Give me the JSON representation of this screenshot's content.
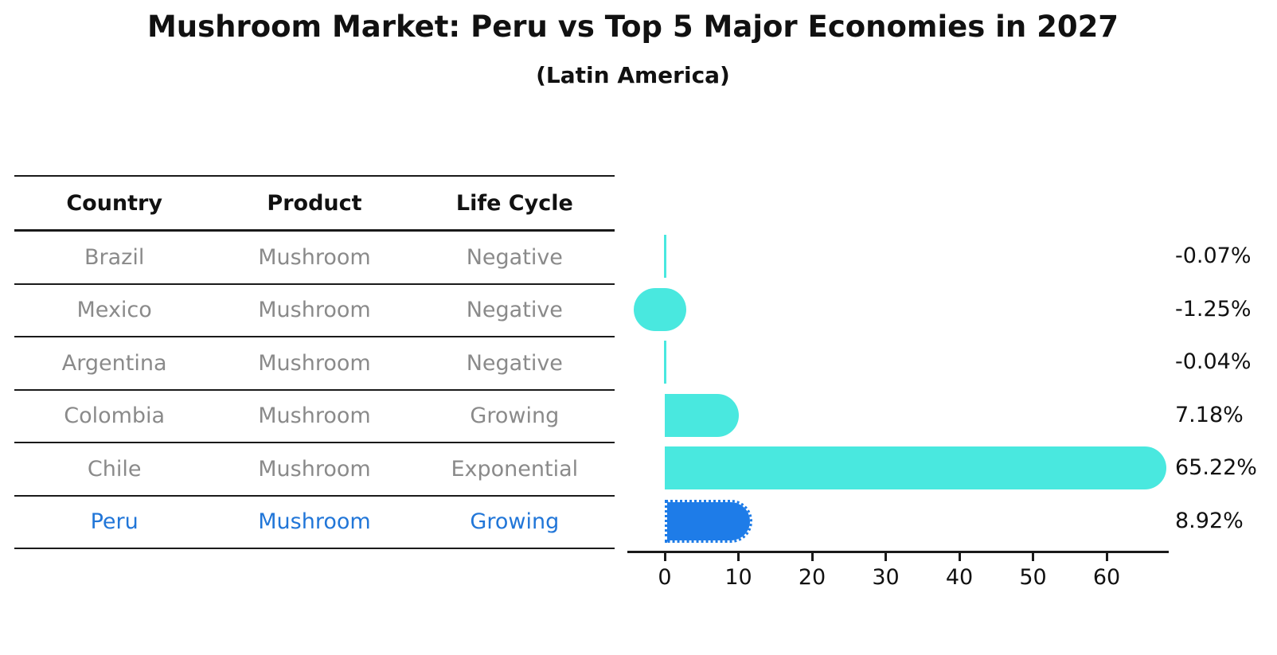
{
  "title": "Mushroom Market: Peru vs Top 5 Major Economies in 2027",
  "subtitle": "(Latin America)",
  "table": {
    "headers": [
      "Country",
      "Product",
      "Life Cycle"
    ],
    "rows": [
      {
        "country": "Brazil",
        "product": "Mushroom",
        "life_cycle": "Negative"
      },
      {
        "country": "Mexico",
        "product": "Mushroom",
        "life_cycle": "Negative"
      },
      {
        "country": "Argentina",
        "product": "Mushroom",
        "life_cycle": "Negative"
      },
      {
        "country": "Colombia",
        "product": "Mushroom",
        "life_cycle": "Growing"
      },
      {
        "country": "Chile",
        "product": "Mushroom",
        "life_cycle": "Exponential"
      },
      {
        "country": "Peru",
        "product": "Mushroom",
        "life_cycle": "Growing"
      }
    ]
  },
  "chart": {
    "rows": [
      {
        "country": "Brazil",
        "value": -0.07,
        "label": "-0.07%",
        "highlight": false
      },
      {
        "country": "Mexico",
        "value": -1.25,
        "label": "-1.25%",
        "highlight": false
      },
      {
        "country": "Argentina",
        "value": -0.04,
        "label": "-0.04%",
        "highlight": false
      },
      {
        "country": "Colombia",
        "value": 7.18,
        "label": "7.18%",
        "highlight": false
      },
      {
        "country": "Chile",
        "value": 65.22,
        "label": "65.22%",
        "highlight": false
      },
      {
        "country": "Peru",
        "value": 8.92,
        "label": "8.92%",
        "highlight": true
      }
    ],
    "ticks": [
      "0",
      "10",
      "20",
      "30",
      "40",
      "50",
      "60"
    ],
    "colors": {
      "bar": "#49E8DF",
      "highlight": "#1E7CE8",
      "highlight_text": "#2176D8",
      "axis": "#1a1a1a",
      "muted_text": "#8a8a8a"
    }
  },
  "chart_data": {
    "type": "bar",
    "orientation": "horizontal",
    "title": "Mushroom Market: Peru vs Top 5 Major Economies in 2027",
    "subtitle": "(Latin America)",
    "categories": [
      "Brazil",
      "Mexico",
      "Argentina",
      "Colombia",
      "Chile",
      "Peru"
    ],
    "values": [
      -0.07,
      -1.25,
      -0.04,
      7.18,
      65.22,
      8.92
    ],
    "value_labels": [
      "-0.07%",
      "-1.25%",
      "-0.04%",
      "7.18%",
      "65.22%",
      "8.92%"
    ],
    "xticks": [
      0,
      10,
      20,
      30,
      40,
      50,
      60
    ],
    "xlim": [
      -5,
      68
    ],
    "grid": false,
    "legend": "none",
    "highlight_category": "Peru",
    "bar_color": "#49E8DF",
    "highlight_color": "#1E7CE8",
    "table_columns": [
      "Country",
      "Product",
      "Life Cycle"
    ],
    "table_rows": [
      [
        "Brazil",
        "Mushroom",
        "Negative"
      ],
      [
        "Mexico",
        "Mushroom",
        "Negative"
      ],
      [
        "Argentina",
        "Mushroom",
        "Negative"
      ],
      [
        "Colombia",
        "Mushroom",
        "Growing"
      ],
      [
        "Chile",
        "Mushroom",
        "Exponential"
      ],
      [
        "Peru",
        "Mushroom",
        "Growing"
      ]
    ]
  }
}
